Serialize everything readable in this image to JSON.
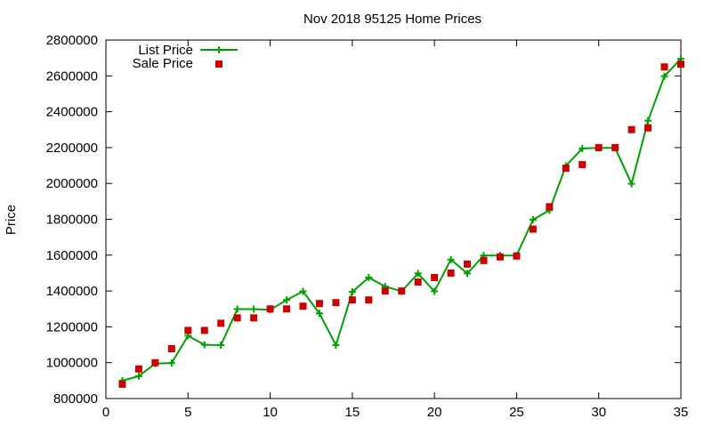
{
  "chart_data": {
    "type": "scatter",
    "title": "Nov 2018 95125 Home Prices",
    "xlabel": "",
    "ylabel": "Price",
    "xlim": [
      0,
      35
    ],
    "ylim": [
      800000,
      2800000
    ],
    "xticks": [
      0,
      5,
      10,
      15,
      20,
      25,
      30,
      35
    ],
    "yticks": [
      800000,
      1000000,
      1200000,
      1400000,
      1600000,
      1800000,
      2000000,
      2200000,
      2400000,
      2600000,
      2800000
    ],
    "grid": false,
    "legend_position": "top-left",
    "series": [
      {
        "name": "List Price",
        "style": "line-with-plus-markers",
        "color": "#00a000",
        "points": [
          [
            1,
            900000
          ],
          [
            2,
            925000
          ],
          [
            3,
            995000
          ],
          [
            4,
            998000
          ],
          [
            5,
            1150000
          ],
          [
            6,
            1100000
          ],
          [
            7,
            1098000
          ],
          [
            8,
            1299000
          ],
          [
            9,
            1299000
          ],
          [
            10,
            1295000
          ],
          [
            11,
            1350000
          ],
          [
            12,
            1398000
          ],
          [
            13,
            1275000
          ],
          [
            14,
            1098000
          ],
          [
            15,
            1395000
          ],
          [
            16,
            1475000
          ],
          [
            17,
            1425000
          ],
          [
            18,
            1398000
          ],
          [
            19,
            1498000
          ],
          [
            20,
            1398000
          ],
          [
            21,
            1575000
          ],
          [
            22,
            1498000
          ],
          [
            23,
            1598000
          ],
          [
            24,
            1598000
          ],
          [
            25,
            1598000
          ],
          [
            26,
            1798000
          ],
          [
            27,
            1850000
          ],
          [
            28,
            2098000
          ],
          [
            29,
            2195000
          ],
          [
            30,
            2198000
          ],
          [
            31,
            2198000
          ],
          [
            32,
            1998000
          ],
          [
            33,
            2350000
          ],
          [
            34,
            2598000
          ],
          [
            35,
            2695000
          ]
        ]
      },
      {
        "name": "Sale Price",
        "style": "square-markers",
        "color": "#cc0000",
        "points": [
          [
            1,
            880000
          ],
          [
            2,
            965000
          ],
          [
            3,
            1000000
          ],
          [
            4,
            1078000
          ],
          [
            5,
            1180000
          ],
          [
            6,
            1180000
          ],
          [
            7,
            1220000
          ],
          [
            8,
            1250000
          ],
          [
            9,
            1250000
          ],
          [
            10,
            1300000
          ],
          [
            11,
            1300000
          ],
          [
            12,
            1315000
          ],
          [
            13,
            1330000
          ],
          [
            14,
            1335000
          ],
          [
            15,
            1350000
          ],
          [
            16,
            1350000
          ],
          [
            17,
            1400000
          ],
          [
            18,
            1400000
          ],
          [
            19,
            1450000
          ],
          [
            20,
            1475000
          ],
          [
            21,
            1500000
          ],
          [
            22,
            1550000
          ],
          [
            23,
            1570000
          ],
          [
            24,
            1590000
          ],
          [
            25,
            1595000
          ],
          [
            26,
            1745000
          ],
          [
            27,
            1870000
          ],
          [
            28,
            2085000
          ],
          [
            29,
            2105000
          ],
          [
            30,
            2200000
          ],
          [
            31,
            2200000
          ],
          [
            32,
            2300000
          ],
          [
            33,
            2310000
          ],
          [
            34,
            2650000
          ],
          [
            35,
            2665000
          ]
        ]
      }
    ]
  }
}
